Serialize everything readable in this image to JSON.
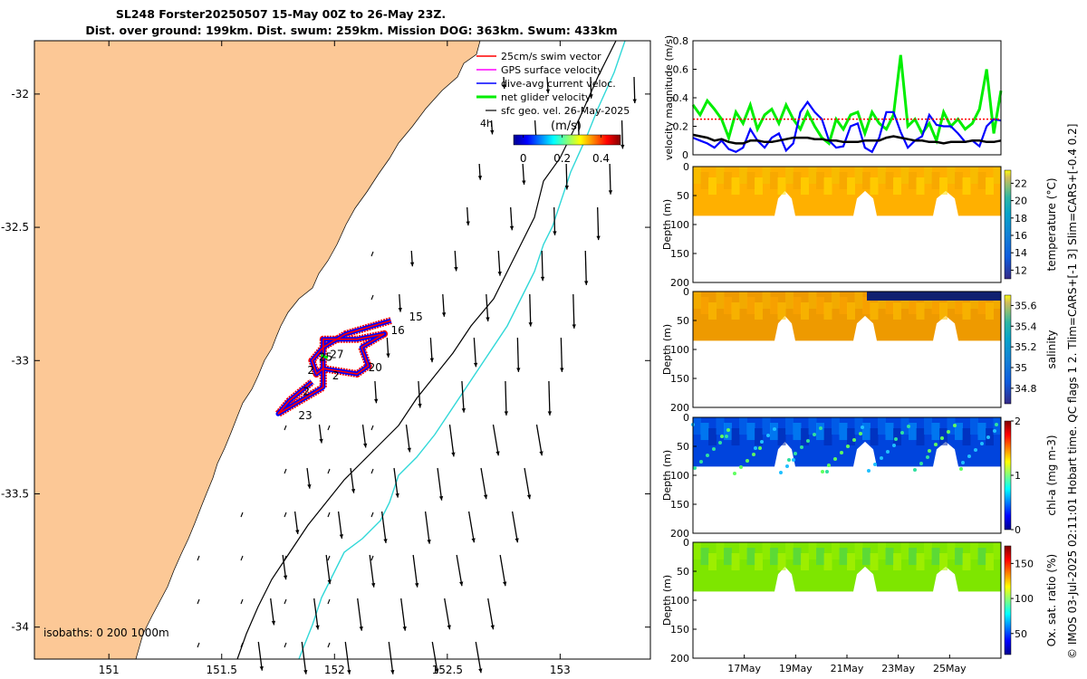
{
  "title": {
    "line1": "SL248 Forster20250507 15-May 00Z to 26-May 23Z.",
    "line2": "Dist. over ground: 199km. Dist. swum: 259km. Mission DOG: 363km. Swum: 433km"
  },
  "side_note": "© IMOS 03-Jul-2025 02:11:01 Hobart time. QC flags 1  2. Tlim=CARS+[-1 3] Slim=CARS+[-0.4 0.2]",
  "colors": {
    "land": "#fcc896",
    "sea": "#ffffff",
    "track_red": "#ff0000",
    "track_blue": "#0000ff",
    "glider_green": "#00ee00",
    "isobath_cyan": "#30d8d8"
  },
  "chart_data": [
    {
      "type": "map",
      "name": "track-map",
      "xlim": [
        150.67,
        153.4
      ],
      "ylim": [
        -34.12,
        -31.8
      ],
      "xticks": [
        151,
        151.5,
        152,
        152.5,
        153
      ],
      "yticks": [
        -32,
        -32.5,
        -33,
        -33.5,
        -34
      ],
      "legend": [
        {
          "label": "25cm/s swim vector",
          "color": "#ff0000"
        },
        {
          "label": "GPS surface velocity",
          "color": "#ff00ff"
        },
        {
          "label": "dive-avg current veloc.",
          "color": "#0000ff"
        },
        {
          "label": "net glider velocity",
          "color": "#00ee00"
        },
        {
          "label": "sfc geo. vel. 26-May-2025",
          "color": "#000000"
        }
      ],
      "legend_extra": "4h",
      "colorbar": {
        "label": "(m/s)",
        "ticks": [
          0,
          0.2,
          0.4
        ],
        "range": [
          -0.05,
          0.5
        ]
      },
      "isobaths_label": "isobaths: 0   200   1000m",
      "day_labels": [
        {
          "label": "15",
          "lon": 152.33,
          "lat": -32.85
        },
        {
          "label": "16",
          "lon": 152.25,
          "lat": -32.9
        },
        {
          "label": "20",
          "lon": 152.15,
          "lat": -33.04
        },
        {
          "label": "25",
          "lon": 151.93,
          "lat": -33.0
        },
        {
          "label": "27",
          "lon": 151.98,
          "lat": -32.99
        },
        {
          "label": "2",
          "lon": 151.88,
          "lat": -33.05
        },
        {
          "label": "2",
          "lon": 151.99,
          "lat": -33.07
        },
        {
          "label": "2",
          "lon": 151.86,
          "lat": -33.13
        },
        {
          "label": "23",
          "lon": 151.84,
          "lat": -33.22
        }
      ]
    },
    {
      "type": "line",
      "name": "velocity-magnitude",
      "ylabel": "velocity magnitude (m/s)",
      "ylim": [
        0,
        0.8
      ],
      "yticks": [
        0,
        0.2,
        0.4,
        0.6,
        0.8
      ],
      "xlim": [
        15,
        27
      ],
      "series": [
        {
          "color": "#00ee00",
          "values": [
            0.35,
            0.28,
            0.38,
            0.32,
            0.25,
            0.12,
            0.3,
            0.22,
            0.35,
            0.18,
            0.28,
            0.32,
            0.22,
            0.35,
            0.25,
            0.18,
            0.3,
            0.2,
            0.12,
            0.08,
            0.25,
            0.18,
            0.28,
            0.3,
            0.15,
            0.3,
            0.22,
            0.18,
            0.28,
            0.7,
            0.2,
            0.25,
            0.15,
            0.22,
            0.1,
            0.3,
            0.2,
            0.25,
            0.18,
            0.22,
            0.32,
            0.6,
            0.15,
            0.45
          ]
        },
        {
          "color": "#0000ff",
          "values": [
            0.12,
            0.1,
            0.08,
            0.05,
            0.1,
            0.04,
            0.02,
            0.05,
            0.18,
            0.1,
            0.05,
            0.12,
            0.15,
            0.03,
            0.08,
            0.3,
            0.37,
            0.3,
            0.25,
            0.1,
            0.05,
            0.06,
            0.2,
            0.22,
            0.05,
            0.02,
            0.12,
            0.3,
            0.3,
            0.16,
            0.05,
            0.1,
            0.13,
            0.28,
            0.21,
            0.2,
            0.2,
            0.15,
            0.09,
            0.1,
            0.06,
            0.2,
            0.25,
            0.24
          ]
        },
        {
          "color": "#000000",
          "values": [
            0.14,
            0.13,
            0.12,
            0.1,
            0.11,
            0.09,
            0.08,
            0.08,
            0.1,
            0.1,
            0.09,
            0.09,
            0.1,
            0.11,
            0.12,
            0.12,
            0.12,
            0.11,
            0.11,
            0.1,
            0.1,
            0.09,
            0.09,
            0.09,
            0.1,
            0.1,
            0.1,
            0.12,
            0.13,
            0.12,
            0.11,
            0.1,
            0.1,
            0.09,
            0.09,
            0.08,
            0.09,
            0.09,
            0.09,
            0.1,
            0.1,
            0.09,
            0.09,
            0.1
          ]
        },
        {
          "color": "#ff0000",
          "values": [
            0.25,
            0.25
          ]
        }
      ]
    },
    {
      "type": "heatmap",
      "name": "temperature",
      "ylabel": "Depth (m)",
      "clabel": "temperature (°C)",
      "ylim": [
        200,
        0
      ],
      "yticks": [
        0,
        50,
        100,
        150,
        200
      ],
      "cticks": [
        12,
        14,
        16,
        18,
        20,
        22
      ],
      "crange": [
        11,
        23.5
      ],
      "dominant_value": 20.5
    },
    {
      "type": "heatmap",
      "name": "salinity",
      "ylabel": "Depth (m)",
      "clabel": "salinity",
      "ylim": [
        200,
        0
      ],
      "yticks": [
        0,
        50,
        100,
        150,
        200
      ],
      "cticks": [
        34.8,
        35,
        35.2,
        35.4,
        35.6
      ],
      "crange": [
        34.65,
        35.7
      ],
      "dominant_value": 35.5
    },
    {
      "type": "heatmap",
      "name": "chl-a",
      "ylabel": "Depth (m)",
      "clabel": "chl-a (mg m-3)",
      "ylim": [
        200,
        0
      ],
      "yticks": [
        0,
        50,
        100,
        150,
        200
      ],
      "cticks": [
        0,
        1,
        2
      ],
      "crange": [
        0,
        2
      ],
      "dominant_value": 0.3
    },
    {
      "type": "heatmap",
      "name": "oxygen",
      "ylabel": "Depth (m)",
      "clabel": "Ox. sat. ratio (%)",
      "ylim": [
        200,
        0
      ],
      "yticks": [
        0,
        50,
        100,
        150,
        200
      ],
      "cticks": [
        50,
        100,
        150
      ],
      "crange": [
        20,
        175
      ],
      "dominant_value": 128
    }
  ],
  "time_axis": {
    "ticks": [
      "17May",
      "19May",
      "21May",
      "23May",
      "25May"
    ],
    "tick_days": [
      17,
      19,
      21,
      23,
      25
    ]
  }
}
